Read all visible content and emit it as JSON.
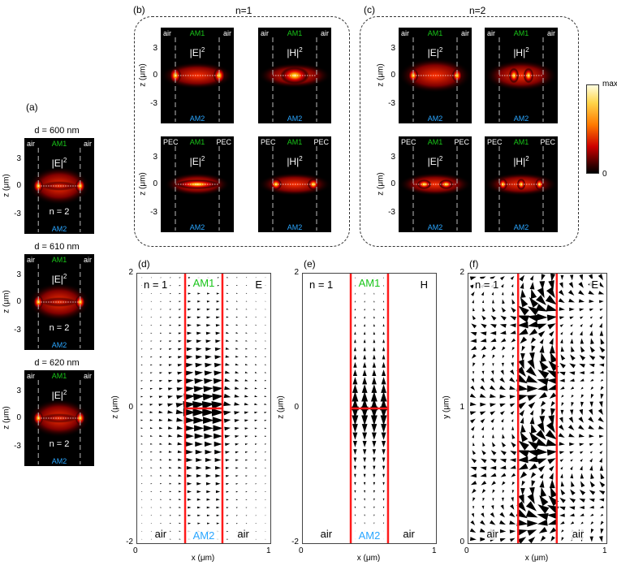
{
  "panels": {
    "a": "(a)",
    "b": "(b)",
    "c": "(c)",
    "d": "(d)",
    "e": "(e)",
    "f": "(f)"
  },
  "headers": {
    "b": "n=1",
    "c": "n=2"
  },
  "panel_a": {
    "items": [
      {
        "title": "d = 600 nm",
        "left": "air",
        "mid": "AM1",
        "right": "air",
        "bottom": "AM2",
        "field": "|E|",
        "sup": "2",
        "n": "n = 2"
      },
      {
        "title": "d = 610 nm",
        "left": "air",
        "mid": "AM1",
        "right": "air",
        "bottom": "AM2",
        "field": "|E|",
        "sup": "2",
        "n": "n = 2"
      },
      {
        "title": "d = 620 nm",
        "left": "air",
        "mid": "AM1",
        "right": "air",
        "bottom": "AM2",
        "field": "|E|",
        "sup": "2",
        "n": "n = 2"
      }
    ],
    "ticks": [
      "3",
      "0",
      "-3"
    ],
    "ylabel": "z (μm)"
  },
  "panel_b": {
    "top": [
      {
        "left": "air",
        "mid": "AM1",
        "right": "air",
        "bottom": "AM2",
        "field": "|E|",
        "sup": "2"
      },
      {
        "left": "air",
        "mid": "AM1",
        "right": "air",
        "bottom": "AM2",
        "field": "|H|",
        "sup": "2"
      }
    ],
    "bottom": [
      {
        "left": "PEC",
        "mid": "AM1",
        "right": "PEC",
        "bottom": "AM2",
        "field": "|E|",
        "sup": "2"
      },
      {
        "left": "PEC",
        "mid": "AM1",
        "right": "PEC",
        "bottom": "AM2",
        "field": "|H|",
        "sup": "2"
      }
    ],
    "ticks": [
      "3",
      "0",
      "-3"
    ],
    "ylabel": "z (μm)"
  },
  "panel_c": {
    "top": [
      {
        "left": "air",
        "mid": "AM1",
        "right": "air",
        "bottom": "AM2",
        "field": "|E|",
        "sup": "2"
      },
      {
        "left": "air",
        "mid": "AM1",
        "right": "air",
        "bottom": "AM2",
        "field": "|H|",
        "sup": "2"
      }
    ],
    "bottom": [
      {
        "left": "PEC",
        "mid": "AM1",
        "right": "PEC",
        "bottom": "AM2",
        "field": "|E|",
        "sup": "2"
      },
      {
        "left": "PEC",
        "mid": "AM1",
        "right": "PEC",
        "bottom": "AM2",
        "field": "|H|",
        "sup": "2"
      }
    ],
    "ticks": [
      "3",
      "0",
      "-3"
    ],
    "ylabel": "z (μm)"
  },
  "colorbar": {
    "max": "max",
    "min": "0"
  },
  "panel_d": {
    "n": "n = 1",
    "field": "E",
    "top": "AM1",
    "bottom": "AM2",
    "left": "air",
    "right": "air",
    "xlabel": "x (μm)",
    "ylabel": "z (μm)",
    "yticks": [
      "2",
      "0",
      "-2"
    ],
    "xticks": [
      "0",
      "1"
    ]
  },
  "panel_e": {
    "n": "n = 1",
    "field": "H",
    "top": "AM1",
    "bottom": "AM2",
    "left": "air",
    "right": "air",
    "xlabel": "x (μm)",
    "ylabel": "z (μm)",
    "yticks": [
      "2",
      "0",
      "-2"
    ],
    "xticks": [
      "0",
      "1"
    ]
  },
  "panel_f": {
    "n": "n = 1",
    "field": "E",
    "left": "air",
    "right": "air",
    "xlabel": "x (μm)",
    "ylabel": "y (μm)",
    "yticks": [
      "2",
      "1",
      "0"
    ],
    "xticks": [
      "0",
      "1"
    ]
  },
  "colors": {
    "accent_green": "#19c519",
    "accent_blue": "#2aa6ff",
    "interface_red": "#ff1a1a"
  }
}
